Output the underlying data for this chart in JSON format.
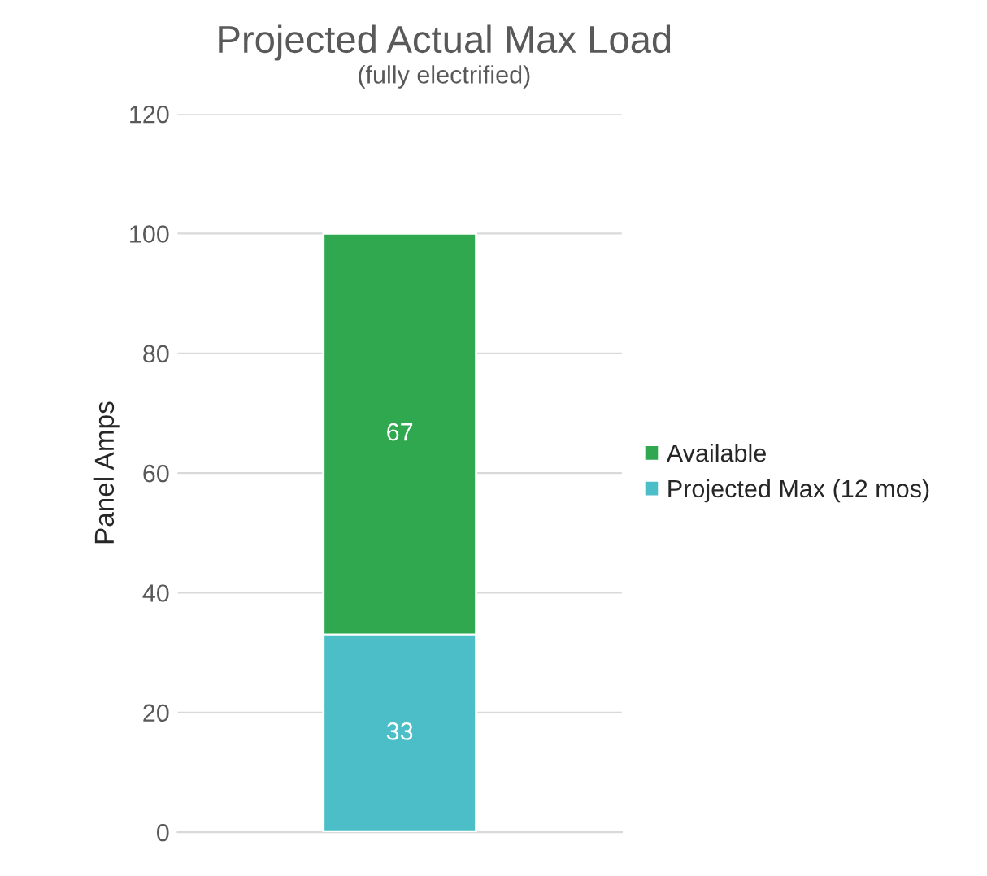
{
  "chart_data": {
    "type": "bar",
    "title": "Projected Actual Max Load",
    "subtitle": "(fully electrified)",
    "ylabel": "Panel Amps",
    "categories": [
      null
    ],
    "stacked": true,
    "data_labels": true,
    "series": [
      {
        "name": "Projected Max (12 mos)",
        "color": "#4bbec8",
        "values": [
          33
        ]
      },
      {
        "name": "Available",
        "color": "#2fa84f",
        "values": [
          67
        ]
      }
    ],
    "ylim": [
      0,
      120
    ],
    "yticks": [
      0,
      20,
      40,
      60,
      80,
      100,
      120
    ],
    "grid": "y",
    "legend": "right"
  }
}
